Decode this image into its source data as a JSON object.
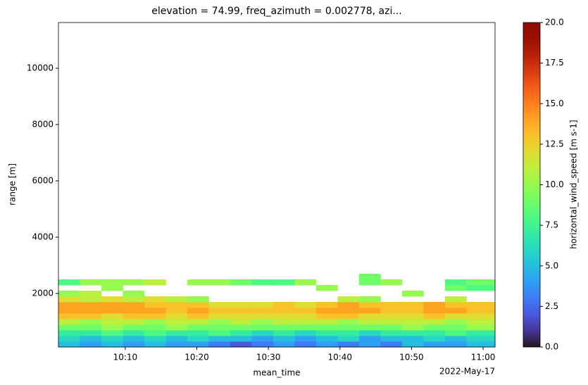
{
  "chart_data": {
    "type": "heatmap",
    "title": "elevation = 74.99, freq_azimuth = 0.002778, azi...",
    "x_label": "mean_time",
    "x_offset_label": "2022-May-17",
    "y_label": "range [m]",
    "colorbar_label": "horizontal_wind_speed [m s-1]",
    "colormap": "turbo",
    "x": [
      "10:00:40",
      "10:03:40",
      "10:06:40",
      "10:09:40",
      "10:12:40",
      "10:15:40",
      "10:18:40",
      "10:21:40",
      "10:24:40",
      "10:27:40",
      "10:30:40",
      "10:33:40",
      "10:36:40",
      "10:39:40",
      "10:42:40",
      "10:45:40",
      "10:48:40",
      "10:51:40",
      "10:54:40",
      "10:57:40",
      "11:01:40"
    ],
    "y": [
      100,
      300,
      500,
      700,
      900,
      1100,
      1300,
      1500,
      1700,
      1900,
      2100,
      2300,
      2500,
      2700
    ],
    "z": [
      [
        5,
        4,
        5,
        4,
        5,
        4,
        4,
        3,
        2,
        3,
        4,
        3,
        4,
        3,
        4,
        3,
        5,
        4,
        4,
        5
      ],
      [
        6,
        5,
        6,
        5,
        6,
        5,
        6,
        5,
        5,
        4,
        5,
        4,
        5,
        6,
        4,
        5,
        5,
        6,
        5,
        6
      ],
      [
        7,
        7,
        8,
        7,
        8,
        7,
        7,
        8,
        7,
        6,
        7,
        6,
        7,
        7,
        6,
        7,
        7,
        7,
        8,
        7
      ],
      [
        9,
        9,
        10,
        9,
        9,
        10,
        9,
        9,
        9,
        9,
        9,
        9,
        9,
        9,
        9,
        9,
        10,
        9,
        9,
        10
      ],
      [
        11,
        10,
        11,
        11,
        10,
        11,
        11,
        10,
        11,
        10,
        11,
        11,
        11,
        10,
        11,
        11,
        11,
        11,
        10,
        11
      ],
      [
        13,
        13,
        12,
        13,
        13,
        12,
        13,
        12,
        12,
        12,
        12,
        12,
        13,
        13,
        12,
        12,
        12,
        13,
        12,
        12
      ],
      [
        14,
        14,
        14,
        14,
        14,
        13,
        14,
        13,
        13,
        13,
        13,
        13,
        14,
        14,
        14,
        13,
        13,
        14,
        14,
        13
      ],
      [
        14,
        14,
        14,
        14,
        13,
        13,
        13,
        12,
        12,
        12,
        13,
        12,
        13,
        14,
        13,
        13,
        13,
        14,
        13,
        13
      ],
      [
        12,
        11,
        12,
        11,
        12,
        11,
        10,
        null,
        null,
        null,
        null,
        null,
        null,
        11,
        10,
        null,
        null,
        null,
        11,
        null
      ],
      [
        10,
        11,
        null,
        10,
        null,
        null,
        null,
        null,
        null,
        null,
        null,
        null,
        null,
        null,
        null,
        null,
        10,
        null,
        null,
        null
      ],
      [
        null,
        null,
        10,
        null,
        null,
        null,
        null,
        null,
        null,
        null,
        null,
        null,
        10,
        null,
        null,
        null,
        null,
        null,
        9,
        8
      ],
      [
        8,
        10,
        10,
        10,
        11,
        null,
        10,
        10,
        9,
        8,
        8,
        10,
        null,
        null,
        9,
        10,
        null,
        null,
        8,
        9
      ],
      [
        null,
        null,
        null,
        null,
        null,
        null,
        null,
        null,
        null,
        null,
        null,
        null,
        null,
        null,
        9,
        null,
        null,
        null,
        null,
        null
      ]
    ],
    "xlim": [
      "10:00:40",
      "11:01:40"
    ],
    "xticks": [
      "10:10",
      "10:20",
      "10:30",
      "10:40",
      "10:50",
      "11:00"
    ],
    "ylim": [
      100,
      11625
    ],
    "yticks": [
      2000,
      4000,
      6000,
      8000,
      10000
    ],
    "zlim": [
      0,
      20
    ],
    "zticks": [
      {
        "value": 0,
        "label": "0.0"
      },
      2.5,
      {
        "value": 5,
        "label": "5.0"
      },
      7.5,
      {
        "value": 10,
        "label": "10.0"
      },
      12.5,
      {
        "value": 15,
        "label": "15.0"
      },
      17.5,
      {
        "value": 20,
        "label": "20.0"
      }
    ]
  }
}
